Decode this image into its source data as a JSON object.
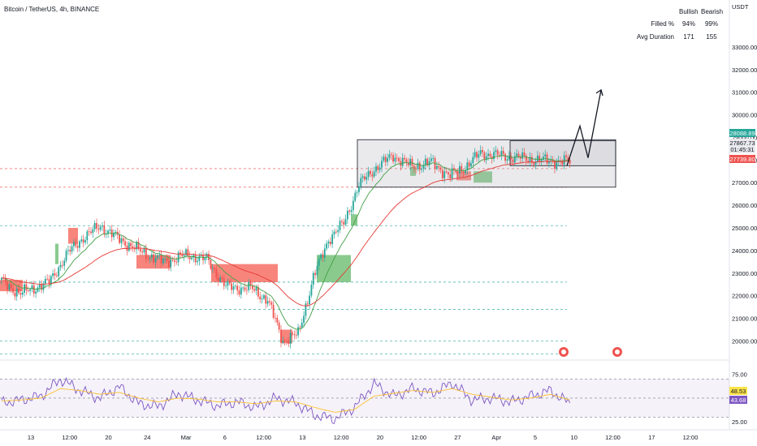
{
  "header": {
    "symbol_line": "Bitcoin / TetherUS, 4h, BINANCE",
    "currency": "USDT"
  },
  "stats_table": {
    "col_bullish": "Bullish",
    "col_bearish": "Bearish",
    "rows": [
      {
        "label": "Filled %",
        "bullish": "94%",
        "bearish": "99%"
      },
      {
        "label": "Avg Duration",
        "bullish": "171",
        "bearish": "155"
      }
    ]
  },
  "price_badges": {
    "upper": "28088.89",
    "current": "27867.73",
    "countdown": "01:45:31",
    "lower": "27739.80"
  },
  "rsi_badges": {
    "yellow": "48.53",
    "purple": "43.68"
  },
  "colors": {
    "bull": "#26a69a",
    "bear": "#ef5350",
    "fvg_bull": "#4caf50",
    "fvg_bear": "#f44336",
    "ma_fast": "#43a047",
    "ma_slow": "#e53935",
    "rsi": "#7e57c2",
    "rsi_ma": "#fbc02d"
  },
  "chart_data": [
    {
      "type": "candlestick",
      "title": "Bitcoin / TetherUS, 4h, BINANCE",
      "ylabel": "USDT",
      "ylim": [
        19300,
        34000
      ],
      "y_ticks": [
        20000,
        21000,
        22000,
        23000,
        24000,
        25000,
        26000,
        27000,
        28000,
        29000,
        30000,
        31000,
        32000,
        33000
      ],
      "x_ticks": [
        "13",
        "12:00",
        "20",
        "24",
        "Mar",
        "6",
        "12:00",
        "13",
        "12:00",
        "20",
        "12:00",
        "27",
        "Apr",
        "5",
        "10",
        "12:00",
        "17",
        "12:00"
      ],
      "anchors": [
        {
          "i": 0,
          "p": 22600
        },
        {
          "i": 10,
          "p": 22100
        },
        {
          "i": 25,
          "p": 22600
        },
        {
          "i": 35,
          "p": 23900
        },
        {
          "i": 42,
          "p": 24500
        },
        {
          "i": 52,
          "p": 25100
        },
        {
          "i": 60,
          "p": 24600
        },
        {
          "i": 72,
          "p": 24000
        },
        {
          "i": 85,
          "p": 23500
        },
        {
          "i": 98,
          "p": 23800
        },
        {
          "i": 108,
          "p": 23600
        },
        {
          "i": 118,
          "p": 22400
        },
        {
          "i": 132,
          "p": 22300
        },
        {
          "i": 140,
          "p": 21800
        },
        {
          "i": 148,
          "p": 20000
        },
        {
          "i": 156,
          "p": 20300
        },
        {
          "i": 164,
          "p": 22800
        },
        {
          "i": 172,
          "p": 24500
        },
        {
          "i": 180,
          "p": 25200
        },
        {
          "i": 188,
          "p": 26900
        },
        {
          "i": 196,
          "p": 27600
        },
        {
          "i": 206,
          "p": 28200
        },
        {
          "i": 216,
          "p": 27700
        },
        {
          "i": 226,
          "p": 27900
        },
        {
          "i": 236,
          "p": 27300
        },
        {
          "i": 244,
          "p": 27700
        },
        {
          "i": 252,
          "p": 28300
        },
        {
          "i": 262,
          "p": 28200
        },
        {
          "i": 272,
          "p": 28100
        },
        {
          "i": 282,
          "p": 28000
        },
        {
          "i": 292,
          "p": 27950
        }
      ],
      "fvg_zones": [
        {
          "dir": "bull",
          "x0": 68,
          "x1": 72,
          "p0": 23400,
          "p1": 24300
        },
        {
          "dir": "bear",
          "x0": 84,
          "x1": 96,
          "p0": 24300,
          "p1": 25000
        },
        {
          "dir": "bear",
          "x0": 0,
          "x1": 28,
          "p0": 22200,
          "p1": 22700
        },
        {
          "dir": "bear",
          "x0": 168,
          "x1": 210,
          "p0": 23200,
          "p1": 23800
        },
        {
          "dir": "bear",
          "x0": 260,
          "x1": 342,
          "p0": 22600,
          "p1": 23400
        },
        {
          "dir": "bear",
          "x0": 346,
          "x1": 360,
          "p0": 19900,
          "p1": 20500
        },
        {
          "dir": "bull",
          "x0": 390,
          "x1": 432,
          "p0": 22600,
          "p1": 23800
        },
        {
          "dir": "bull",
          "x0": 432,
          "x1": 440,
          "p0": 25100,
          "p1": 25600
        },
        {
          "dir": "bull",
          "x0": 505,
          "x1": 512,
          "p0": 27300,
          "p1": 27700
        },
        {
          "dir": "bear",
          "x0": 562,
          "x1": 580,
          "p0": 27100,
          "p1": 27500
        },
        {
          "dir": "bull",
          "x0": 583,
          "x1": 606,
          "p0": 27000,
          "p1": 27500
        }
      ],
      "levels": [
        {
          "price": 27620,
          "color": "#ef5350"
        },
        {
          "price": 26800,
          "color": "#ef5350"
        },
        {
          "price": 25100,
          "color": "#26a69a"
        },
        {
          "price": 22600,
          "color": "#26a69a"
        },
        {
          "price": 21400,
          "color": "#26a69a"
        },
        {
          "price": 20000,
          "color": "#26a69a"
        },
        {
          "price": 19420,
          "color": "#26a69a"
        }
      ],
      "range_box": {
        "p0": 26800,
        "p1": 28900
      },
      "inner_box": {
        "p0": 27750,
        "p1": 28850
      },
      "projection": [
        {
          "p": 27750
        },
        {
          "p": 29500
        },
        {
          "p": 28100
        },
        {
          "p": 31100
        }
      ]
    },
    {
      "type": "line",
      "title": "",
      "ylim": [
        20,
        85
      ],
      "y_ticks": [
        25.0,
        75.0
      ],
      "bands": [
        30,
        50,
        70
      ],
      "series": [
        {
          "values": [
            45,
            48,
            52,
            70,
            58,
            50,
            62,
            44,
            41,
            55,
            48,
            42,
            46,
            40,
            50,
            45,
            32,
            28,
            40,
            65,
            52,
            60,
            55,
            66,
            48,
            50,
            46,
            52,
            58,
            44
          ]
        },
        {
          "values": [
            47,
            48,
            50,
            60,
            58,
            54,
            56,
            50,
            46,
            50,
            49,
            46,
            46,
            44,
            47,
            46,
            40,
            35,
            38,
            52,
            55,
            58,
            56,
            60,
            54,
            51,
            48,
            50,
            54,
            48
          ]
        }
      ]
    }
  ]
}
